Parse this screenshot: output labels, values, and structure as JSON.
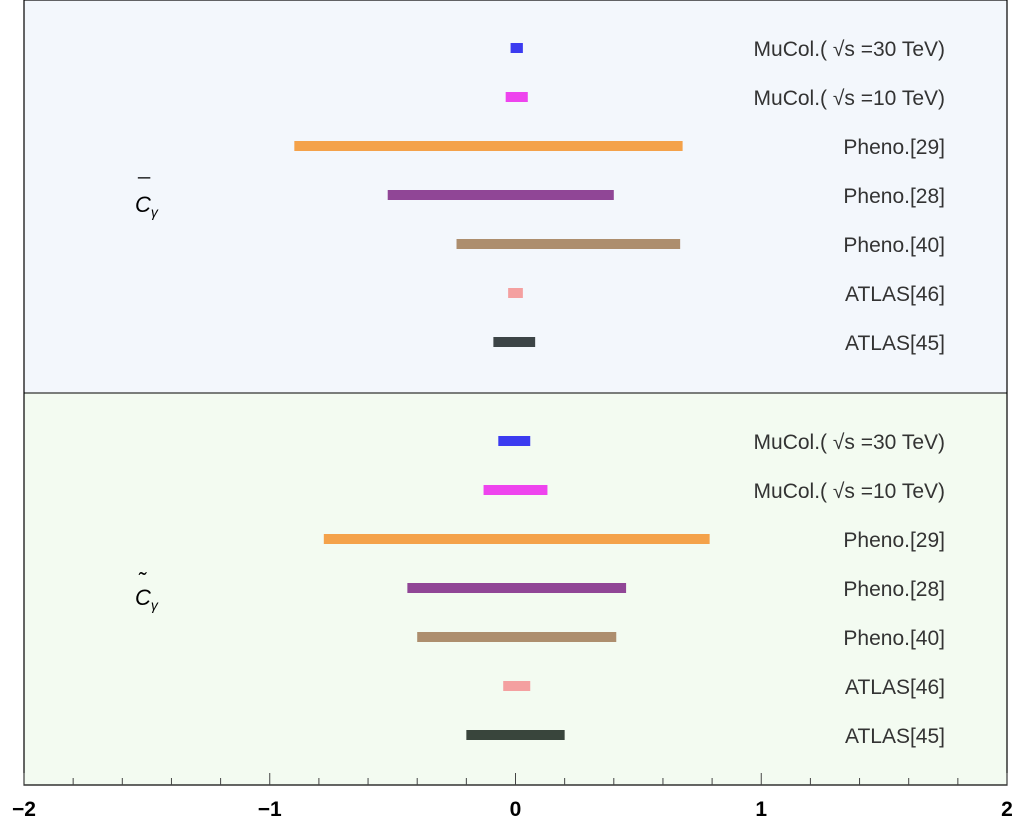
{
  "chart_data": {
    "type": "interval",
    "xlim": [
      -2,
      2
    ],
    "x_ticks": [
      -2,
      -1,
      0,
      1,
      2
    ],
    "x_tick_labels": [
      "−2",
      "−1",
      "0",
      "1",
      "2"
    ],
    "grid": false,
    "panels": [
      {
        "label": "C",
        "label_accent": "¯",
        "label_sub": "γ",
        "background": "#f3f7fc",
        "rows": [
          {
            "name": "MuCol.( √s =30 TeV)",
            "min": -0.02,
            "max": 0.03,
            "color": "#3b3bf0"
          },
          {
            "name": "MuCol.( √s =10 TeV)",
            "min": -0.04,
            "max": 0.05,
            "color": "#ee44ee"
          },
          {
            "name": "Pheno.[29]",
            "min": -0.9,
            "max": 0.68,
            "color": "#f4a24a"
          },
          {
            "name": "Pheno.[28]",
            "min": -0.52,
            "max": 0.4,
            "color": "#904696"
          },
          {
            "name": "Pheno.[40]",
            "min": -0.24,
            "max": 0.67,
            "color": "#ad8e6e"
          },
          {
            "name": "ATLAS[46]",
            "min": -0.03,
            "max": 0.03,
            "color": "#f4a0a0"
          },
          {
            "name": "ATLAS[45]",
            "min": -0.09,
            "max": 0.08,
            "color": "#3c4446"
          }
        ]
      },
      {
        "label": "C",
        "label_accent": "˜",
        "label_sub": "γ",
        "background": "#f3fbf1",
        "rows": [
          {
            "name": "MuCol.( √s =30 TeV)",
            "min": -0.07,
            "max": 0.06,
            "color": "#3b3bf0"
          },
          {
            "name": "MuCol.( √s =10 TeV)",
            "min": -0.13,
            "max": 0.13,
            "color": "#ee44ee"
          },
          {
            "name": "Pheno.[29]",
            "min": -0.78,
            "max": 0.79,
            "color": "#f4a24a"
          },
          {
            "name": "Pheno.[28]",
            "min": -0.44,
            "max": 0.45,
            "color": "#904696"
          },
          {
            "name": "Pheno.[40]",
            "min": -0.4,
            "max": 0.41,
            "color": "#ad8e6e"
          },
          {
            "name": "ATLAS[46]",
            "min": -0.05,
            "max": 0.06,
            "color": "#f4a0a0"
          },
          {
            "name": "ATLAS[45]",
            "min": -0.2,
            "max": 0.2,
            "color": "#39453c"
          }
        ]
      }
    ]
  }
}
